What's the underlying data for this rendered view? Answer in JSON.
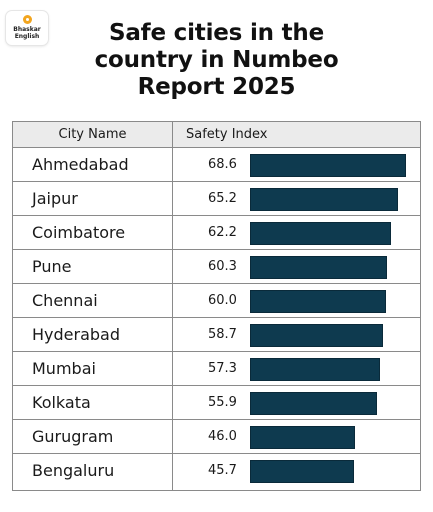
{
  "logo": {
    "text": "Bhaskar\nEnglish",
    "dot_color": "#f2a51e"
  },
  "title_lines": [
    "Safe cities in the",
    "country in Numbeo",
    "Report 2025"
  ],
  "table": {
    "headers": {
      "city": "City Name",
      "safety": "Safety Index"
    }
  },
  "colors": {
    "bar": "#0e3a4f",
    "header_bg": "#ebebeb"
  },
  "chart_data": {
    "type": "bar",
    "orientation": "horizontal",
    "title": "Safe cities in the country in Numbeo Report 2025",
    "xlabel": "Safety Index",
    "ylabel": "City Name",
    "xlim": [
      0,
      68.6
    ],
    "categories": [
      "Ahmedabad",
      "Jaipur",
      "Coimbatore",
      "Pune",
      "Chennai",
      "Hyderabad",
      "Mumbai",
      "Kolkata",
      "Gurugram",
      "Bengaluru"
    ],
    "values": [
      68.6,
      65.2,
      62.2,
      60.3,
      60.0,
      58.7,
      57.3,
      55.9,
      46.0,
      45.7
    ],
    "value_labels": [
      "68.6",
      "65.2",
      "62.2",
      "60.3",
      "60.0",
      "58.7",
      "57.3",
      "55.9",
      "46.0",
      "45.7"
    ],
    "grid": false
  }
}
